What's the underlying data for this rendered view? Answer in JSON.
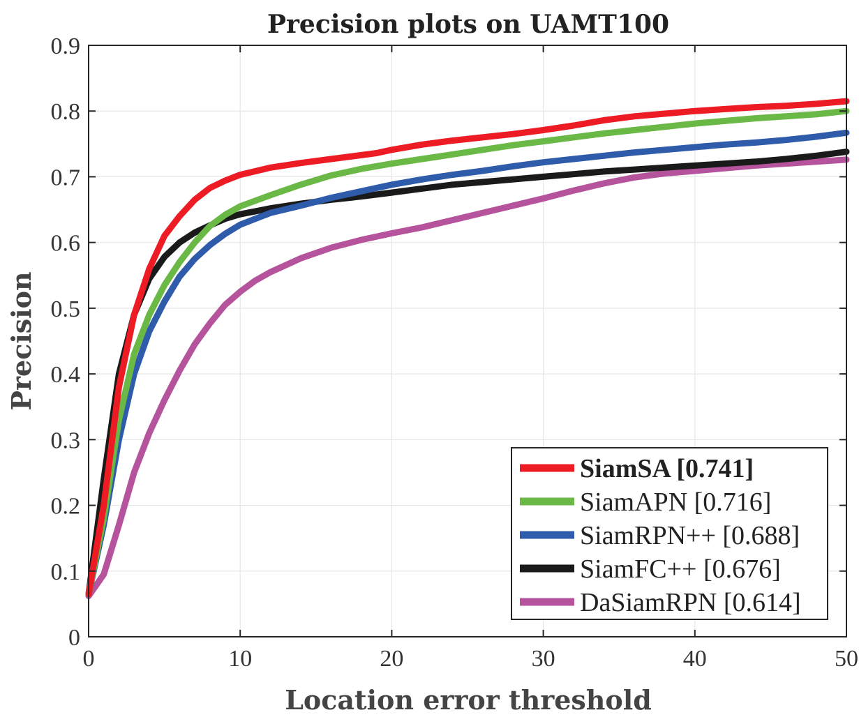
{
  "chart_data": {
    "type": "line",
    "title": "Precision plots on UAMT100",
    "xlabel": "Location error threshold",
    "ylabel": "Precision",
    "xlim": [
      0,
      50
    ],
    "ylim": [
      0,
      0.9
    ],
    "xticks": [
      0,
      10,
      20,
      30,
      40,
      50
    ],
    "yticks": [
      0,
      0.1,
      0.2,
      0.3,
      0.4,
      0.5,
      0.6,
      0.7,
      0.8,
      0.9
    ],
    "grid": true,
    "legend_position": "bottom-right",
    "series": [
      {
        "name": "SiamSA [0.741]",
        "bold": true,
        "color": "#ed1c24",
        "x": [
          0,
          1,
          2,
          3,
          4,
          5,
          6,
          7,
          8,
          9,
          10,
          12,
          14,
          16,
          18,
          19,
          20,
          22,
          24,
          26,
          28,
          30,
          32,
          34,
          36,
          38,
          40,
          42,
          44,
          46,
          48,
          50
        ],
        "y": [
          0.065,
          0.2,
          0.38,
          0.49,
          0.56,
          0.61,
          0.64,
          0.665,
          0.683,
          0.694,
          0.703,
          0.714,
          0.721,
          0.727,
          0.733,
          0.736,
          0.741,
          0.749,
          0.755,
          0.76,
          0.765,
          0.771,
          0.778,
          0.786,
          0.792,
          0.796,
          0.8,
          0.803,
          0.806,
          0.808,
          0.811,
          0.815
        ]
      },
      {
        "name": "SiamAPN [0.716]",
        "bold": false,
        "color": "#6ab846",
        "x": [
          0,
          1,
          2,
          3,
          4,
          5,
          6,
          7,
          8,
          9,
          10,
          12,
          14,
          16,
          18,
          20,
          22,
          24,
          26,
          28,
          30,
          32,
          34,
          36,
          38,
          40,
          42,
          44,
          46,
          48,
          50
        ],
        "y": [
          0.065,
          0.18,
          0.33,
          0.43,
          0.49,
          0.535,
          0.57,
          0.6,
          0.625,
          0.642,
          0.655,
          0.672,
          0.688,
          0.702,
          0.712,
          0.72,
          0.727,
          0.734,
          0.741,
          0.748,
          0.754,
          0.76,
          0.766,
          0.771,
          0.776,
          0.781,
          0.785,
          0.789,
          0.792,
          0.795,
          0.8
        ]
      },
      {
        "name": "SiamRPN++ [0.688]",
        "bold": false,
        "color": "#2f5bab",
        "x": [
          0,
          1,
          2,
          3,
          4,
          5,
          6,
          7,
          8,
          9,
          10,
          12,
          14,
          16,
          18,
          20,
          22,
          24,
          26,
          28,
          30,
          32,
          34,
          36,
          38,
          40,
          42,
          44,
          46,
          48,
          50
        ],
        "y": [
          0.065,
          0.17,
          0.3,
          0.4,
          0.465,
          0.51,
          0.548,
          0.575,
          0.596,
          0.613,
          0.627,
          0.645,
          0.656,
          0.668,
          0.678,
          0.688,
          0.696,
          0.703,
          0.709,
          0.716,
          0.722,
          0.727,
          0.732,
          0.737,
          0.741,
          0.745,
          0.749,
          0.752,
          0.756,
          0.761,
          0.767
        ]
      },
      {
        "name": "SiamFC++ [0.676]",
        "bold": false,
        "color": "#1a1a1a",
        "x": [
          0,
          1,
          2,
          3,
          4,
          5,
          6,
          7,
          8,
          9,
          10,
          12,
          14,
          16,
          18,
          20,
          22,
          24,
          26,
          28,
          30,
          32,
          34,
          36,
          38,
          40,
          42,
          44,
          46,
          48,
          50
        ],
        "y": [
          0.065,
          0.24,
          0.4,
          0.49,
          0.545,
          0.578,
          0.6,
          0.615,
          0.626,
          0.636,
          0.643,
          0.652,
          0.659,
          0.665,
          0.67,
          0.676,
          0.682,
          0.688,
          0.692,
          0.696,
          0.7,
          0.704,
          0.708,
          0.711,
          0.714,
          0.717,
          0.72,
          0.723,
          0.727,
          0.732,
          0.738
        ]
      },
      {
        "name": "DaSiamRPN [0.614]",
        "bold": false,
        "color": "#b5549c",
        "x": [
          0,
          1,
          2,
          3,
          4,
          5,
          6,
          7,
          8,
          9,
          10,
          11,
          12,
          14,
          16,
          18,
          20,
          22,
          24,
          26,
          28,
          30,
          32,
          34,
          36,
          38,
          40,
          42,
          44,
          46,
          48,
          50
        ],
        "y": [
          0.062,
          0.095,
          0.17,
          0.25,
          0.31,
          0.36,
          0.405,
          0.445,
          0.477,
          0.505,
          0.525,
          0.542,
          0.555,
          0.576,
          0.592,
          0.604,
          0.614,
          0.623,
          0.634,
          0.645,
          0.656,
          0.667,
          0.679,
          0.69,
          0.699,
          0.705,
          0.709,
          0.713,
          0.717,
          0.72,
          0.723,
          0.726
        ]
      }
    ]
  }
}
